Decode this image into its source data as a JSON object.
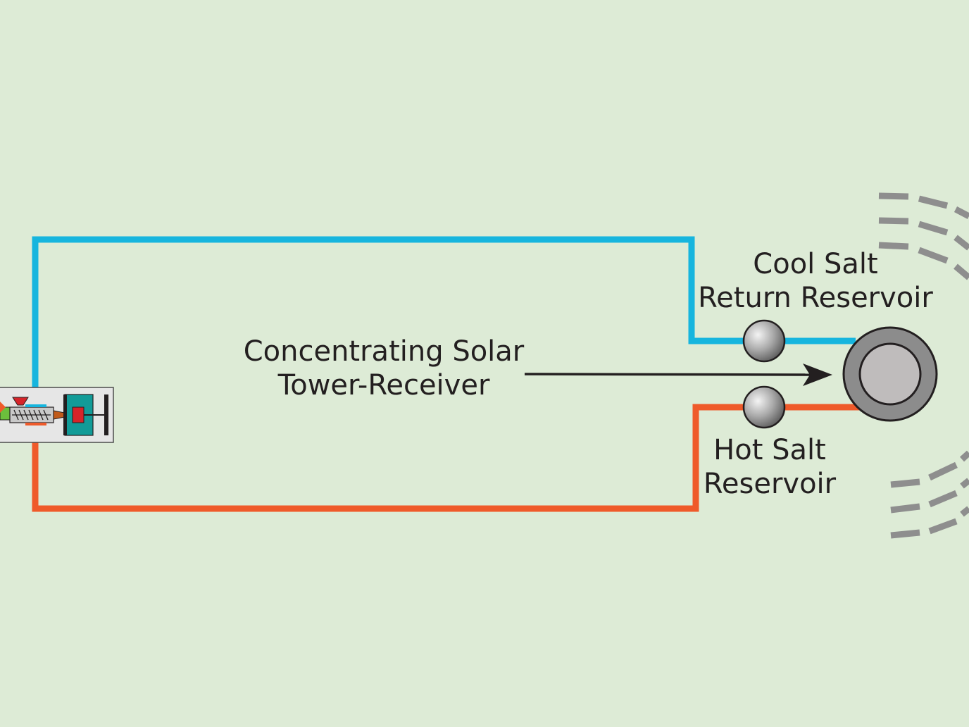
{
  "labels": {
    "tower_line1": "Concentrating Solar",
    "tower_line2": "Tower-Receiver",
    "cool_line1": "Cool Salt",
    "cool_line2": "Return Reservoir",
    "hot_line1": "Hot Salt",
    "hot_line2": "Reservoir"
  },
  "colors": {
    "background": "#ddebd6",
    "cool_pipe": "#16b5de",
    "hot_pipe": "#ef5a2a",
    "reservoir": "#8c8c8c",
    "tower": "#b3b3b3",
    "heliostat": "#8e8e8e",
    "text": "#231f20"
  },
  "icons": {
    "machine": "injection-molding-machine-icon"
  }
}
